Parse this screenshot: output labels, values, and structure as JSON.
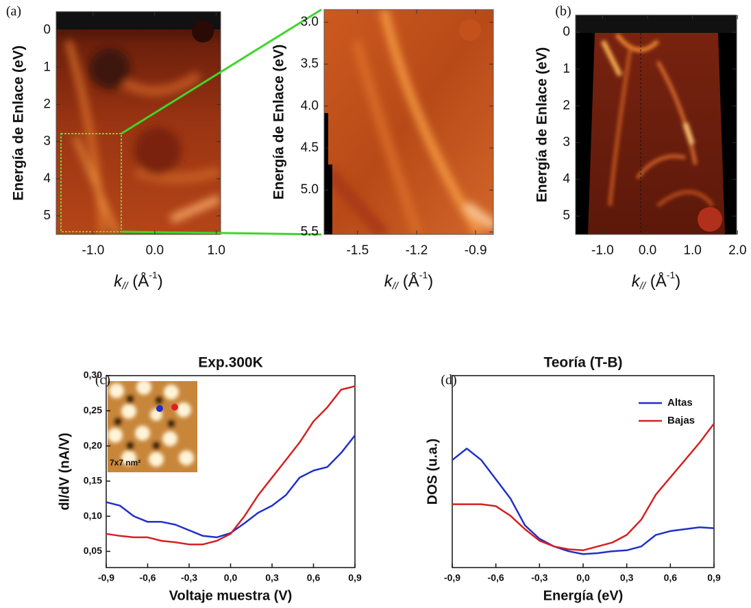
{
  "chart_data": [
    {
      "type": "image",
      "panel_label": "(a)",
      "ylabel": "Energía de Enlace (eV)",
      "xlabel": [
        "k",
        "//",
        " (Å",
        "-1",
        ")"
      ],
      "xlim": [
        -1.6,
        1.07
      ],
      "ylim": [
        5.5,
        -0.5
      ],
      "xticks": [
        {
          "value": -1,
          "label": "-1.0"
        },
        {
          "value": 0,
          "label": "0.0"
        },
        {
          "value": 1,
          "label": "1.0"
        }
      ],
      "yticks": [
        0,
        1,
        2,
        3,
        4,
        5
      ]
    },
    {
      "type": "image",
      "ylabel": "Energía de Enlace (eV)",
      "xlabel": [
        "k",
        "//",
        " (Å",
        "-1",
        ")"
      ],
      "xlim": [
        -1.67,
        -0.81
      ],
      "ylim": [
        5.53,
        2.85
      ],
      "xticks": [
        -1.5,
        -1.2,
        -0.9
      ],
      "yticks": [
        {
          "value": 3,
          "label": "3.0"
        },
        3.5,
        {
          "value": 4,
          "label": "4.0"
        },
        4.5,
        {
          "value": 5,
          "label": "5.0"
        },
        5.5
      ]
    },
    {
      "type": "image",
      "panel_label": "(b)",
      "ylabel": "Energía de Enlace (eV)",
      "xlabel": [
        "k",
        "//",
        " (Å",
        "-1",
        ")"
      ],
      "xlim": [
        -1.6,
        1.98
      ],
      "ylim": [
        5.5,
        -0.47
      ],
      "xticks": [
        {
          "value": -1,
          "label": "-1.0"
        },
        {
          "value": 0,
          "label": "0.0"
        },
        {
          "value": 1,
          "label": "1.0"
        },
        {
          "value": 2,
          "label": "2.0"
        }
      ],
      "yticks": [
        0,
        1,
        2,
        3,
        4,
        5
      ]
    },
    {
      "type": "line",
      "panel_label": "(c)",
      "title": "Exp.300K",
      "xlabel": "Voltaje muestra (V)",
      "ylabel": "dI/dV (nA/V)",
      "inset_label": "7x7 nm²",
      "x": [
        -0.9,
        -0.8,
        -0.7,
        -0.6,
        -0.5,
        -0.4,
        -0.3,
        -0.2,
        -0.1,
        0,
        0.1,
        0.2,
        0.3,
        0.4,
        0.5,
        0.6,
        0.7,
        0.8,
        0.9
      ],
      "series": [
        {
          "name": "Altas",
          "color": "#1f2fc8",
          "values": [
            0.12,
            0.115,
            0.1,
            0.092,
            0.092,
            0.088,
            0.08,
            0.072,
            0.07,
            0.076,
            0.09,
            0.105,
            0.115,
            0.13,
            0.155,
            0.165,
            0.17,
            0.19,
            0.215
          ]
        },
        {
          "name": "Bajas",
          "color": "#d42020",
          "values": [
            0.075,
            0.072,
            0.07,
            0.07,
            0.065,
            0.063,
            0.06,
            0.06,
            0.065,
            0.075,
            0.1,
            0.13,
            0.155,
            0.18,
            0.205,
            0.235,
            0.255,
            0.28,
            0.285
          ]
        }
      ],
      "xlim": [
        -0.9,
        0.9
      ],
      "ylim": [
        0.027,
        0.3
      ],
      "xticks": [
        {
          "value": -0.9,
          "label": "-0,9"
        },
        {
          "value": -0.6,
          "label": "-0,6"
        },
        {
          "value": -0.3,
          "label": "-0,3"
        },
        {
          "value": 0,
          "label": "0,0"
        },
        {
          "value": 0.3,
          "label": "0,3"
        },
        {
          "value": 0.6,
          "label": "0,6"
        },
        {
          "value": 0.9,
          "label": "0,9"
        }
      ],
      "yticks": [
        {
          "value": 0.05,
          "label": "0,05"
        },
        {
          "value": 0.1,
          "label": "0,10"
        },
        {
          "value": 0.15,
          "label": "0,15"
        },
        {
          "value": 0.2,
          "label": "0,20"
        },
        {
          "value": 0.25,
          "label": "0,25"
        },
        {
          "value": 0.3,
          "label": "0,30"
        }
      ]
    },
    {
      "type": "line",
      "panel_label": "(d)",
      "title": "Teoría (T-B)",
      "xlabel": "Energía (eV)",
      "ylabel": "DOS (u.a.)",
      "legend": "upper right",
      "x": [
        -0.9,
        -0.8,
        -0.7,
        -0.6,
        -0.5,
        -0.4,
        -0.3,
        -0.2,
        -0.1,
        0,
        0.1,
        0.2,
        0.3,
        0.4,
        0.5,
        0.6,
        0.7,
        0.8,
        0.9
      ],
      "series": [
        {
          "name": "Altas",
          "color": "#1f2fc8",
          "values": [
            0.56,
            0.62,
            0.56,
            0.46,
            0.36,
            0.22,
            0.15,
            0.11,
            0.085,
            0.07,
            0.075,
            0.085,
            0.09,
            0.11,
            0.17,
            0.19,
            0.2,
            0.21,
            0.205
          ]
        },
        {
          "name": "Bajas",
          "color": "#d42020",
          "values": [
            0.33,
            0.33,
            0.33,
            0.32,
            0.27,
            0.2,
            0.14,
            0.11,
            0.095,
            0.09,
            0.11,
            0.13,
            0.17,
            0.25,
            0.38,
            0.47,
            0.56,
            0.65,
            0.75
          ]
        }
      ],
      "xlim": [
        -0.9,
        0.9
      ],
      "ylim": [
        0,
        1
      ],
      "xticks": [
        {
          "value": -0.9,
          "label": "-0,9"
        },
        {
          "value": -0.6,
          "label": "-0,6"
        },
        {
          "value": -0.3,
          "label": "-0,3"
        },
        {
          "value": 0,
          "label": "0,0"
        },
        {
          "value": 0.3,
          "label": "0,3"
        },
        {
          "value": 0.6,
          "label": "0,6"
        },
        {
          "value": 0.9,
          "label": "0,9"
        }
      ]
    }
  ]
}
